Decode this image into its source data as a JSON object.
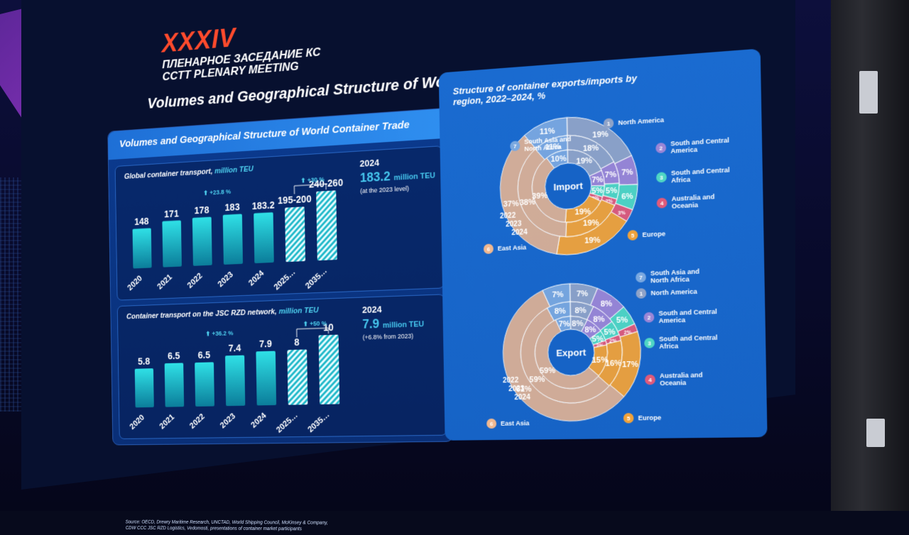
{
  "banner": {
    "roman": "XXXIV",
    "line1": "ПЛЕНАРНОЕ ЗАСЕДАНИЕ КС",
    "line2": "CCTT PLENARY MEETING"
  },
  "slide": {
    "header": "Volumes and Geographical Structure of World Container Trade, million TEU",
    "card_title": "Volumes and Geographical Structure of World Container Trade",
    "source_line1": "Source: OECD, Drewry Maritime Research, UNCTAD, World Shipping Council, McKinsey & Company,",
    "source_line2": "CDW CCC JSC RZD Logistics, Vedomosti, presentations of container market participants"
  },
  "global_panel": {
    "title": "Global container transport,",
    "unit": "million TEU",
    "growth_label": "⬆ +23.8 %",
    "forecast_growth_label": "⬆ +30 %",
    "side_year": "2024",
    "side_value": "183.2",
    "side_unit": "million TEU",
    "side_note": "(at the 2023 level)",
    "bars": [
      {
        "year": "2020",
        "label": "148",
        "value": 148,
        "forecast": false
      },
      {
        "year": "2021",
        "label": "171",
        "value": 171,
        "forecast": false
      },
      {
        "year": "2022",
        "label": "178",
        "value": 178,
        "forecast": false
      },
      {
        "year": "2023",
        "label": "183",
        "value": 183,
        "forecast": false
      },
      {
        "year": "2024",
        "label": "183.2",
        "value": 183.2,
        "forecast": false
      },
      {
        "year": "2025…",
        "label": "195-200",
        "value": 197.5,
        "forecast": true
      },
      {
        "year": "2035…",
        "label": "240-260",
        "value": 250,
        "forecast": true
      }
    ]
  },
  "rzd_panel": {
    "title": "Container transport on the JSC RZD network,",
    "unit": "million TEU",
    "growth_label": "⬆ +36.2 %",
    "forecast_growth_label": "⬆ +50 %",
    "side_year": "2024",
    "side_value": "7.9",
    "side_unit": "million TEU",
    "side_note": "(+6.8% from 2023)",
    "bars": [
      {
        "year": "2020",
        "label": "5.8",
        "value": 5.8,
        "forecast": false
      },
      {
        "year": "2021",
        "label": "6.5",
        "value": 6.5,
        "forecast": false
      },
      {
        "year": "2022",
        "label": "6.5",
        "value": 6.5,
        "forecast": false
      },
      {
        "year": "2023",
        "label": "7.4",
        "value": 7.4,
        "forecast": false
      },
      {
        "year": "2024",
        "label": "7.9",
        "value": 7.9,
        "forecast": false
      },
      {
        "year": "2025…",
        "label": "8",
        "value": 8,
        "forecast": true
      },
      {
        "year": "2035…",
        "label": "10",
        "value": 10,
        "forecast": true
      }
    ]
  },
  "structure": {
    "title": "Structure of container exports/imports by region, 2022–2024, %",
    "years": [
      "2022",
      "2023",
      "2024"
    ],
    "regions": [
      {
        "num": "1",
        "name": "North America",
        "color": "#8fa3c8"
      },
      {
        "num": "2",
        "name": "South and Central America",
        "color": "#9b86d6"
      },
      {
        "num": "3",
        "name": "South and Central Africa",
        "color": "#4fd6c4"
      },
      {
        "num": "4",
        "name": "Australia and Oceania",
        "color": "#e05a7a"
      },
      {
        "num": "5",
        "name": "Europe",
        "color": "#f0a23a"
      },
      {
        "num": "6",
        "name": "East Asia",
        "color": "#f0b890"
      },
      {
        "num": "7",
        "name": "South Asia and North Africa",
        "color": "#7aa8e0"
      }
    ],
    "import": {
      "label": "Import",
      "values": [
        [
          19,
          18,
          19
        ],
        [
          7,
          7,
          7
        ],
        [
          6,
          5,
          5
        ],
        [
          3,
          2,
          2
        ],
        [
          19,
          19,
          19
        ],
        [
          37,
          38,
          39
        ],
        [
          11,
          11,
          10
        ]
      ]
    },
    "export": {
      "label": "Export",
      "values": [
        [
          7,
          8,
          8
        ],
        [
          8,
          8,
          8
        ],
        [
          5,
          5,
          5
        ],
        [
          2,
          2,
          2
        ],
        [
          17,
          16,
          15
        ],
        [
          61,
          59,
          59
        ],
        [
          7,
          8,
          7
        ]
      ]
    }
  }
}
